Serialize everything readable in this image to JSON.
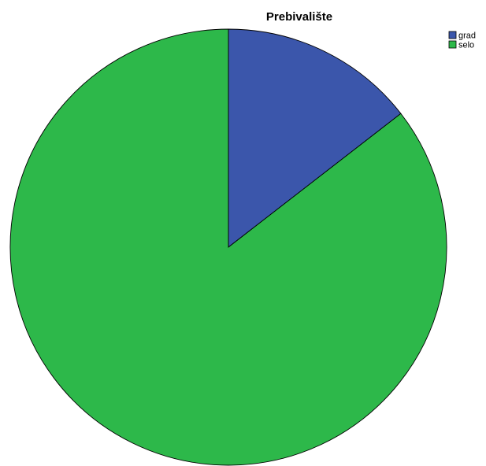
{
  "chart_data": {
    "type": "pie",
    "title": "Prebivalište",
    "categories": [
      "grad",
      "selo"
    ],
    "values": [
      14.5,
      85.5
    ],
    "colors": [
      "#3b56ab",
      "#2db84a"
    ],
    "start_angle": "12 o'clock",
    "direction": "clockwise",
    "legend_position": "top-right"
  }
}
